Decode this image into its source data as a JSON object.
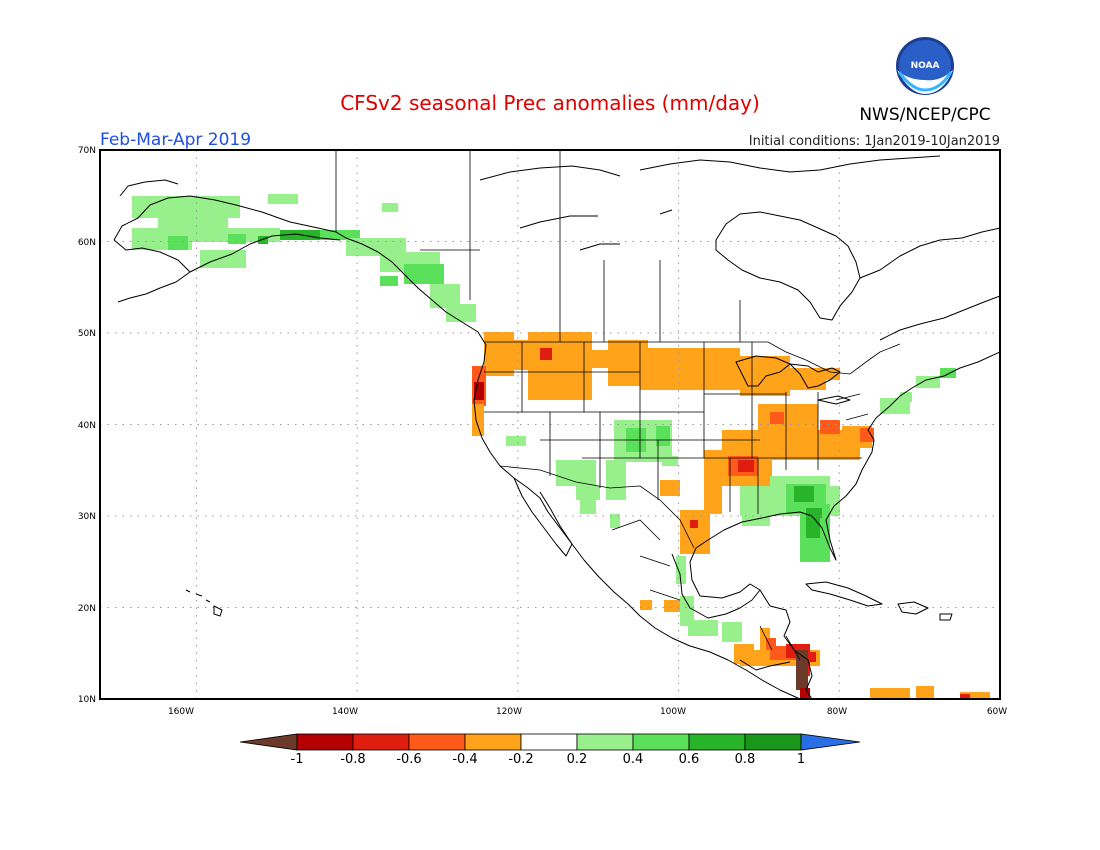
{
  "header": {
    "title": "CFSv2 seasonal Prec anomalies (mm/day)",
    "period": "Feb-Mar-Apr 2019",
    "initial_conditions": "Initial conditions: 1Jan2019-10Jan2019",
    "agency": "NWS/NCEP/CPC",
    "logo_text": "NOAA"
  },
  "map": {
    "lon_range": [
      -172,
      -60
    ],
    "lat_range": [
      10,
      70
    ],
    "lat_ticks": [
      "70N",
      "60N",
      "50N",
      "40N",
      "30N",
      "20N",
      "10N"
    ],
    "lon_ticks": [
      "160W",
      "140W",
      "120W",
      "100W",
      "80W",
      "60W"
    ]
  },
  "legend": {
    "labels": [
      "-1",
      "-0.8",
      "-0.6",
      "-0.4",
      "-0.2",
      "0.2",
      "0.4",
      "0.6",
      "0.8",
      "1"
    ],
    "colors": {
      "lt_-1": "#6b3a2a",
      "-1_-0.8": "#b40000",
      "-0.8_-0.6": "#e01e10",
      "-0.6_-0.4": "#ff5a1a",
      "-0.4_-0.2": "#ffa31a",
      "-0.2_0.2": "#ffffff",
      "0.2_0.4": "#98f08c",
      "0.4_0.6": "#5ae05a",
      "0.6_0.8": "#28b428",
      "0.8_1": "#1a961a",
      "gt_1": "#2a6ee6"
    }
  }
}
